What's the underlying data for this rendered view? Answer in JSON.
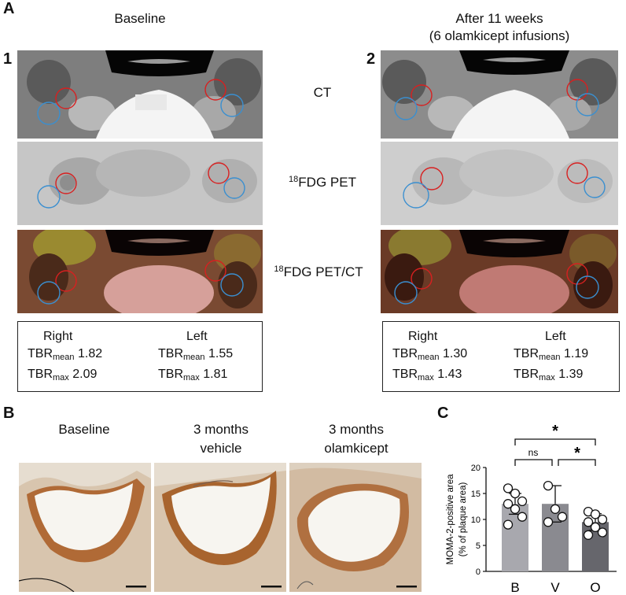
{
  "panel_a": {
    "letter": "A",
    "left": {
      "number": "1",
      "heading": "Baseline"
    },
    "right": {
      "number": "2",
      "heading_line1": "After 11 weeks",
      "heading_line2": "(6 olamkicept infusions)"
    },
    "row_labels": {
      "ct": "CT",
      "pet_sup": "18",
      "pet": "FDG PET",
      "petct_sup": "18",
      "petct": "FDG PET/CT"
    },
    "tbr_left": {
      "right_header": "Right",
      "left_header": "Left",
      "tbr": "TBR",
      "mean": "mean",
      "max": "max",
      "r_mean": "1.82",
      "r_max": "2.09",
      "l_mean": "1.55",
      "l_max": "1.81"
    },
    "tbr_right": {
      "right_header": "Right",
      "left_header": "Left",
      "tbr": "TBR",
      "mean": "mean",
      "max": "max",
      "r_mean": "1.30",
      "r_max": "1.43",
      "l_mean": "1.19",
      "l_max": "1.39"
    }
  },
  "panel_b": {
    "letter": "B",
    "col1": "Baseline",
    "col2_line1": "3 months",
    "col2_line2": "vehicle",
    "col3_line1": "3 months",
    "col3_line2": "olamkicept"
  },
  "panel_c": {
    "letter": "C",
    "sig_top": "*",
    "sig_left": "ns",
    "sig_right": "*"
  },
  "chart_data": {
    "type": "bar",
    "categories": [
      "B",
      "V",
      "O"
    ],
    "values": [
      13,
      13,
      9.5
    ],
    "errors": [
      2,
      3.5,
      1.6
    ],
    "points": [
      [
        16,
        15,
        13.5,
        13,
        12,
        10.5,
        9
      ],
      [
        16.5,
        12,
        10.5,
        9.5
      ],
      [
        11.5,
        11,
        10,
        9.5,
        8.5,
        7.5,
        7
      ]
    ],
    "bar_colors": [
      "#a8a8ae",
      "#8a8a90",
      "#66666c"
    ],
    "ylabel_line1": "MOMA-2-positive area",
    "ylabel_line2": "(% of plaque area)",
    "ylim": [
      0,
      20
    ],
    "yticks": [
      "0",
      "5",
      "10",
      "15",
      "20"
    ]
  }
}
